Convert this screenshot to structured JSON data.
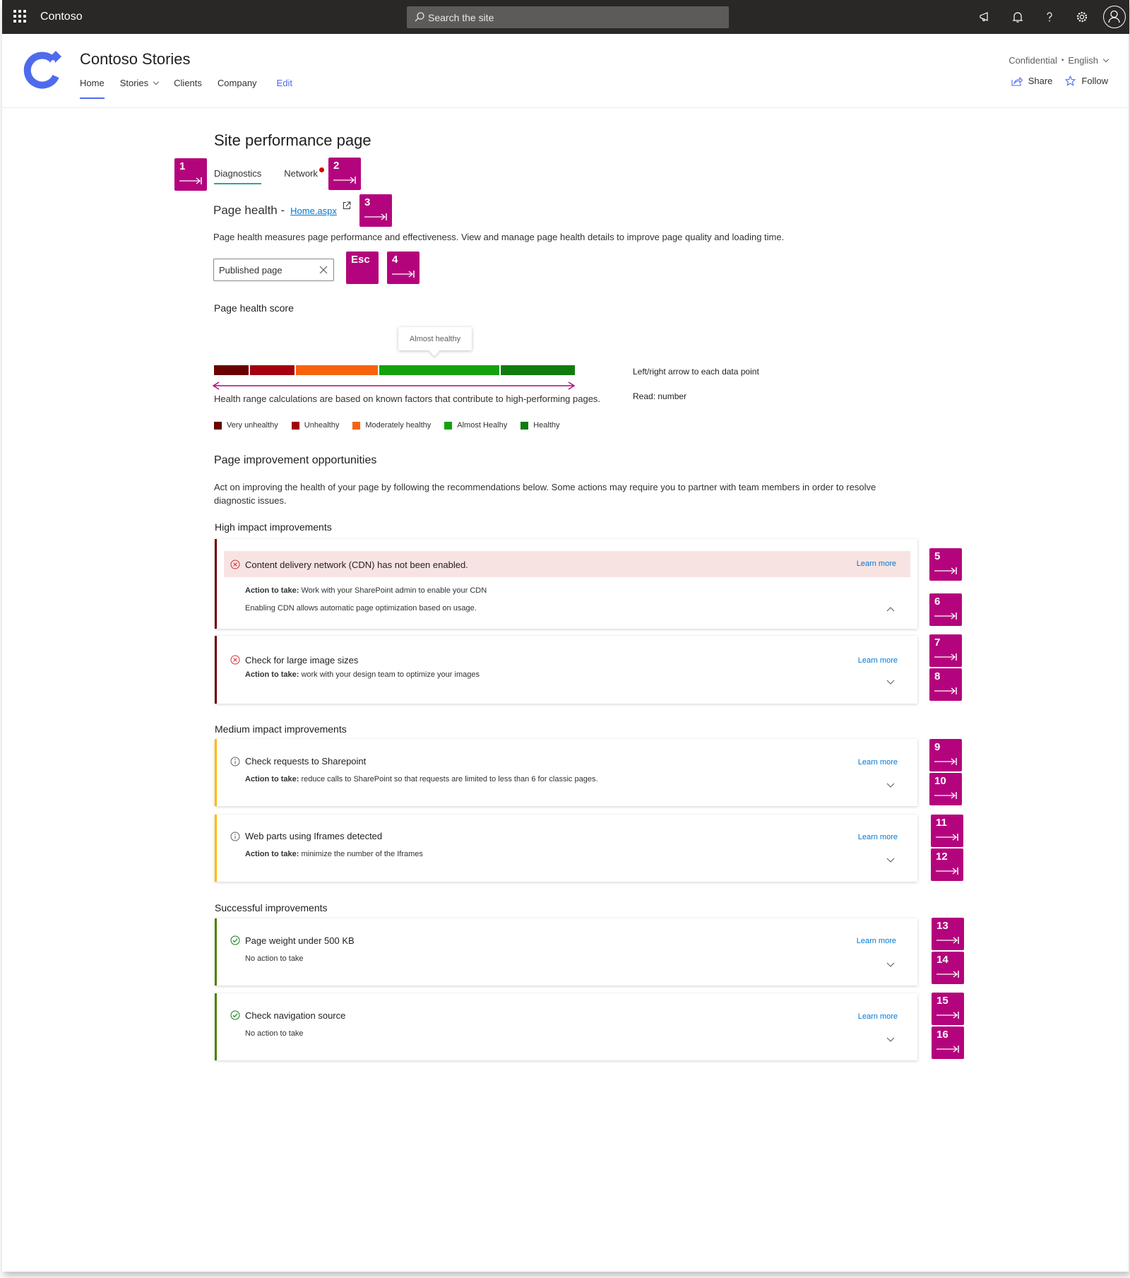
{
  "suitebar": {
    "brand": "Contoso",
    "search_placeholder": "Search the site"
  },
  "site": {
    "title": "Contoso Stories",
    "nav": [
      "Home",
      "Stories",
      "Clients",
      "Company"
    ],
    "edit_label": "Edit",
    "classification": "Confidential",
    "separator": "•",
    "language": "English",
    "share_label": "Share",
    "follow_label": "Follow"
  },
  "page": {
    "title": "Site performance page",
    "tabs": [
      "Diagnostics",
      "Network"
    ],
    "health_heading": "Page health -",
    "health_link": "Home.aspx",
    "health_desc": "Page health measures page performance and effectiveness. View and manage page health details to improve page quality and loading time.",
    "filter_value": "Published page"
  },
  "score": {
    "heading": "Page health score",
    "tooltip": "Almost healthy",
    "note": "Health range calculations are based on known factors that contribute to high-performing pages.",
    "kb_hint": "Left/right arrow to each data point",
    "read_hint": "Read: number",
    "legend": [
      {
        "label": "Very unhealthy",
        "color": "#6b0000"
      },
      {
        "label": "Unhealthy",
        "color": "#a4000f"
      },
      {
        "label": "Moderately healthy",
        "color": "#f7630c"
      },
      {
        "label": "Almost Healhy",
        "color": "#13a10e"
      },
      {
        "label": "Healthy",
        "color": "#107c10"
      }
    ]
  },
  "opportunities": {
    "heading": "Page improvement opportunities",
    "desc": "Act on improving the health of your page by following the recommendations below. Some actions may require you to partner with team members in order to resolve diagnostic issues.",
    "learn_more": "Learn more",
    "action_prefix": "Action to take:",
    "high": {
      "heading": "High impact improvements",
      "items": [
        {
          "title": "Content delivery network  (CDN) has not been enabled.",
          "action": " Work with your SharePoint admin to enable your CDN",
          "extra": "Enabling CDN allows automatic page optimization based on usage."
        },
        {
          "title": "Check for large image sizes",
          "action": " work with your design team to optimize your images"
        }
      ]
    },
    "medium": {
      "heading": "Medium impact improvements",
      "items": [
        {
          "title": "Check requests to Sharepoint",
          "action": " reduce calls to SharePoint so that requests are limited to less than 6 for classic pages."
        },
        {
          "title": "Web parts using Iframes detected",
          "action": " minimize the number of the Iframes"
        }
      ]
    },
    "success": {
      "heading": "Successful improvements",
      "items": [
        {
          "title": "Page weight under 500 KB",
          "note": "No action to take"
        },
        {
          "title": "Check navigation source",
          "note": "No action to take"
        }
      ]
    }
  },
  "annotations": [
    "1",
    "2",
    "3",
    "Esc",
    "4",
    "5",
    "6",
    "7",
    "8",
    "9",
    "10",
    "11",
    "12",
    "13",
    "14",
    "15",
    "16"
  ]
}
